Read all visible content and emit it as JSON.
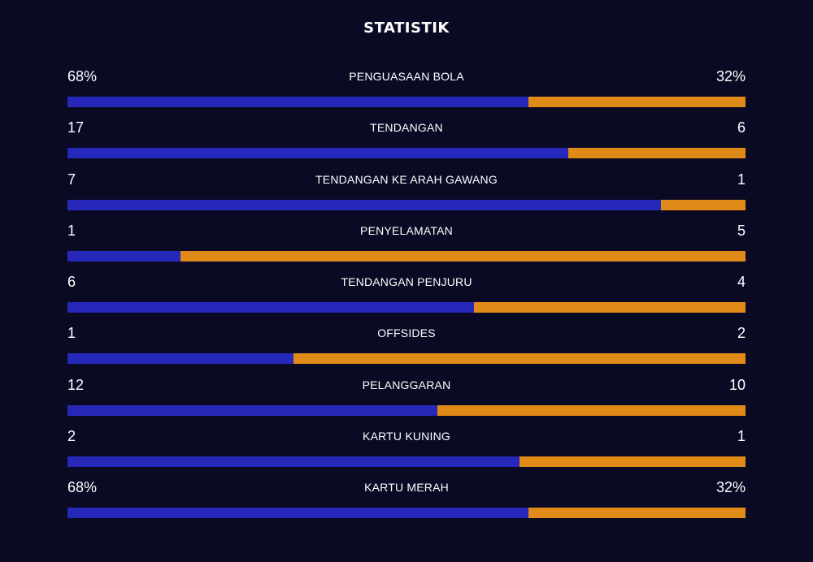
{
  "header": {
    "title": "STATISTIK"
  },
  "colors": {
    "home": "#2528b8",
    "away": "#e08a17",
    "background": "#0a0a24"
  },
  "stats": [
    {
      "label": "PENGUASAAN BOLA",
      "home": "68%",
      "away": "32%",
      "home_share": 0.68
    },
    {
      "label": "TENDANGAN",
      "home": "17",
      "away": "6",
      "home_share": 0.739
    },
    {
      "label": "TENDANGAN KE ARAH GAWANG",
      "home": "7",
      "away": "1",
      "home_share": 0.875
    },
    {
      "label": "PENYELAMATAN",
      "home": "1",
      "away": "5",
      "home_share": 0.167
    },
    {
      "label": "TENDANGAN PENJURU",
      "home": "6",
      "away": "4",
      "home_share": 0.6
    },
    {
      "label": "OFFSIDES",
      "home": "1",
      "away": "2",
      "home_share": 0.333
    },
    {
      "label": "PELANGGARAN",
      "home": "12",
      "away": "10",
      "home_share": 0.545
    },
    {
      "label": "KARTU KUNING",
      "home": "2",
      "away": "1",
      "home_share": 0.667
    },
    {
      "label": "KARTU MERAH",
      "home": "68%",
      "away": "32%",
      "home_share": 0.68
    }
  ]
}
